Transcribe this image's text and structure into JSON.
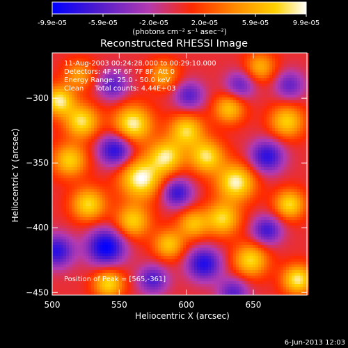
{
  "colorbar": {
    "ticks": [
      "-9.9e-05",
      "-5.9e-05",
      "-2.0e-05",
      "2.0e-05",
      "5.9e-05",
      "9.9e-05"
    ],
    "unit_label": "(photons cm⁻² s⁻¹ asec⁻²)",
    "colors": [
      "#0000ff",
      "#4b1acf",
      "#b33ab0",
      "#ff2a00",
      "#ff8a00",
      "#ffd200",
      "#ffffff"
    ]
  },
  "chart_data": {
    "type": "heatmap",
    "title": "Reconstructed RHESSI Image",
    "xlabel": "Heliocentric X (arcsec)",
    "ylabel": "Heliocentric Y (arcsec)",
    "xlim": [
      500,
      690
    ],
    "ylim": [
      -452,
      -265
    ],
    "x_ticks": [
      500,
      550,
      600,
      650
    ],
    "y_ticks": [
      -300,
      -350,
      -400,
      -450
    ],
    "color_range": [
      -9.9e-05,
      9.9e-05
    ],
    "peak": [
      565,
      -361
    ],
    "blobs": [
      {
        "x": 505,
        "y": -302,
        "v": 0.9,
        "s": 8
      },
      {
        "x": 522,
        "y": -318,
        "v": 0.85,
        "s": 9
      },
      {
        "x": 560,
        "y": -320,
        "v": 0.95,
        "s": 10
      },
      {
        "x": 566,
        "y": -362,
        "v": 1.0,
        "s": 11
      },
      {
        "x": 585,
        "y": -345,
        "v": 0.85,
        "s": 9
      },
      {
        "x": 600,
        "y": -325,
        "v": 0.8,
        "s": 9
      },
      {
        "x": 615,
        "y": -345,
        "v": 0.85,
        "s": 9
      },
      {
        "x": 637,
        "y": -365,
        "v": 0.95,
        "s": 10
      },
      {
        "x": 627,
        "y": -393,
        "v": 0.8,
        "s": 9
      },
      {
        "x": 605,
        "y": -397,
        "v": 0.65,
        "s": 8
      },
      {
        "x": 587,
        "y": -413,
        "v": 0.7,
        "s": 8
      },
      {
        "x": 560,
        "y": -395,
        "v": 0.75,
        "s": 9
      },
      {
        "x": 527,
        "y": -382,
        "v": 0.8,
        "s": 9
      },
      {
        "x": 513,
        "y": -348,
        "v": 0.75,
        "s": 9
      },
      {
        "x": 542,
        "y": -443,
        "v": 0.8,
        "s": 8
      },
      {
        "x": 648,
        "y": -425,
        "v": 0.8,
        "s": 9
      },
      {
        "x": 683,
        "y": -440,
        "v": 0.9,
        "s": 8
      },
      {
        "x": 677,
        "y": -382,
        "v": 0.8,
        "s": 8
      },
      {
        "x": 632,
        "y": -308,
        "v": 0.7,
        "s": 8
      },
      {
        "x": 675,
        "y": -318,
        "v": 0.75,
        "s": 9
      },
      {
        "x": 655,
        "y": -276,
        "v": 0.6,
        "s": 8
      },
      {
        "x": 583,
        "y": -282,
        "v": 0.55,
        "s": 8
      },
      {
        "x": 520,
        "y": -282,
        "v": 0.5,
        "s": 8
      },
      {
        "x": 547,
        "y": -340,
        "v": -0.85,
        "s": 9
      },
      {
        "x": 540,
        "y": -415,
        "v": -1.0,
        "s": 10
      },
      {
        "x": 503,
        "y": -418,
        "v": -0.8,
        "s": 9
      },
      {
        "x": 593,
        "y": -373,
        "v": -0.75,
        "s": 8
      },
      {
        "x": 613,
        "y": -428,
        "v": -0.85,
        "s": 9
      },
      {
        "x": 660,
        "y": -345,
        "v": -0.8,
        "s": 9
      },
      {
        "x": 660,
        "y": -402,
        "v": -0.7,
        "s": 8
      },
      {
        "x": 602,
        "y": -298,
        "v": -0.6,
        "s": 8
      },
      {
        "x": 545,
        "y": -290,
        "v": -0.6,
        "s": 8
      },
      {
        "x": 640,
        "y": -290,
        "v": -0.55,
        "s": 8
      },
      {
        "x": 677,
        "y": -290,
        "v": -0.55,
        "s": 8
      },
      {
        "x": 575,
        "y": -440,
        "v": -0.65,
        "s": 8
      },
      {
        "x": 635,
        "y": -450,
        "v": -0.6,
        "s": 8
      }
    ]
  },
  "info": {
    "time_range": "11-Aug-2003 00:24:28.000 to 00:29:10.000",
    "detectors": "Detectors: 4F 5F 6F 7F 8F, Att 0",
    "energy": "Energy Range: 25.0 - 50.0 keV",
    "clean": "Clean     Total counts: 4.44E+03",
    "peak_text": "Position of Peak = [565,-361]"
  },
  "footer_date": "6-Jun-2013 12:03"
}
